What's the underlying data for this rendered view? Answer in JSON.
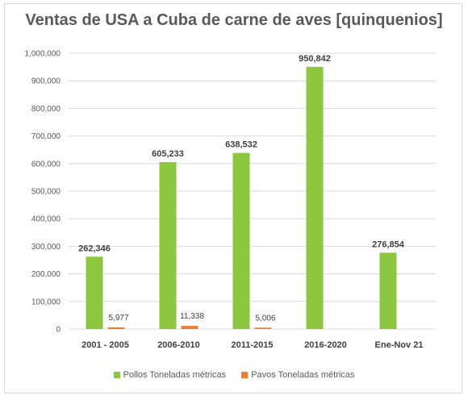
{
  "chart_data": {
    "type": "bar",
    "title": "Ventas de USA a Cuba de carne de aves [quinquenios]",
    "categories": [
      "2001 - 2005",
      "2006-2010",
      "2011-2015",
      "2016-2020",
      "Ene-Nov 21"
    ],
    "series": [
      {
        "name": "Pollos Toneladas métricas",
        "color": "#8dc63f",
        "values": [
          262346,
          605233,
          638532,
          950842,
          276854
        ],
        "labels": [
          "262,346",
          "605,233",
          "638,532",
          "950,842",
          "276,854"
        ]
      },
      {
        "name": "Pavos Toneladas métricas",
        "color": "#ed7d31",
        "values": [
          5977,
          11338,
          5006,
          null,
          null
        ],
        "labels": [
          "5,977",
          "11,338",
          "5,006",
          "",
          ""
        ]
      }
    ],
    "ylim": [
      0,
      1000000
    ],
    "yticks": [
      0,
      100000,
      200000,
      300000,
      400000,
      500000,
      600000,
      700000,
      800000,
      900000,
      1000000
    ],
    "ytick_labels": [
      "0",
      "100,000",
      "200,000",
      "300,000",
      "400,000",
      "500,000",
      "600,000",
      "700,000",
      "800,000",
      "900,000",
      "1,000,000"
    ],
    "grid": true,
    "legend_position": "bottom"
  }
}
